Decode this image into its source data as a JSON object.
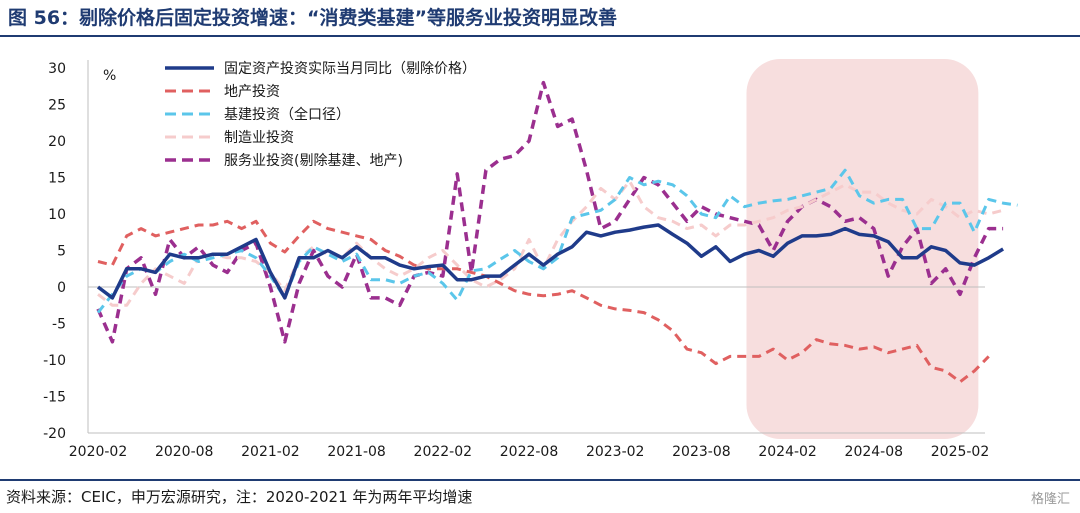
{
  "title": "图 56：剔除价格后固定投资增速：“消费类基建”等服务业投资明显改善",
  "source": "资料来源：CEIC，申万宏源研究，注：2020-2021 年为两年平均增速",
  "watermark": "格隆汇",
  "chart_data": {
    "type": "line",
    "ylabel": "%",
    "ylim": [
      -20,
      30
    ],
    "yticks": [
      30,
      25,
      20,
      15,
      10,
      5,
      0,
      -5,
      -10,
      -15,
      -20
    ],
    "x_tick_labels": [
      "2020-02",
      "2020-08",
      "2021-02",
      "2021-08",
      "2022-02",
      "2022-08",
      "2023-02",
      "2023-08",
      "2024-02",
      "2024-08",
      "2025-02"
    ],
    "x_start": "2020-02",
    "x_end": "2025-02",
    "legend_position": "top-center",
    "highlight_range": [
      "2023-11",
      "2025-03"
    ],
    "highlight_color": "#f7dede",
    "series": [
      {
        "name": "固定资产投资实际当月同比（剔除价格）",
        "color": "#1f3b8a",
        "dash": "solid",
        "width": 3.5,
        "values": [
          0,
          -1.5,
          2.5,
          2.5,
          2,
          4.5,
          4,
          4,
          4.5,
          4.5,
          5.5,
          6.5,
          2,
          -1.5,
          4,
          4,
          5,
          4,
          5.5,
          4,
          4,
          3,
          2.5,
          2.8,
          3,
          1,
          1,
          1.5,
          1.5,
          3,
          4.5,
          3,
          4.5,
          5.5,
          7.5,
          7,
          7.5,
          7.8,
          8.2,
          8.5,
          7.2,
          6,
          4.2,
          5.5,
          3.5,
          4.5,
          5,
          4.2,
          6,
          7,
          7,
          7.2,
          8,
          7.2,
          7,
          6.2,
          4,
          4,
          5.5,
          5,
          3.3,
          3,
          4,
          5.2
        ]
      },
      {
        "name": "地产投资",
        "color": "#e06060",
        "dash": "dashed",
        "width": 3,
        "values": [
          3.5,
          3,
          7,
          8,
          7,
          7.5,
          8,
          8.5,
          8.5,
          9,
          8,
          9,
          6,
          4.8,
          7,
          9,
          8,
          7.5,
          7,
          6.5,
          5,
          4.2,
          3,
          2.5,
          2.5,
          2.5,
          2,
          1.5,
          0.5,
          -0.5,
          -1,
          -1.2,
          -1,
          -0.5,
          -1.5,
          -2.5,
          -3,
          -3.2,
          -3.5,
          -4.5,
          -6,
          -8.5,
          -9,
          -10.5,
          -9.5,
          -9.5,
          -9.5,
          -8.5,
          -10,
          -9,
          -7.2,
          -7.8,
          -8,
          -8.5,
          -8.2,
          -9,
          -8.5,
          -8,
          -11,
          -11.5,
          -13,
          -11.5,
          -9.5
        ]
      },
      {
        "name": "基建投资（全口径）",
        "color": "#5bc6ea",
        "dash": "dashed",
        "width": 3,
        "values": [
          -3.5,
          -1,
          1.5,
          2.5,
          2,
          3.5,
          4.5,
          3.5,
          4,
          4.5,
          5,
          4,
          1.5,
          -1.5,
          3.5,
          5.5,
          4.5,
          3.5,
          4.5,
          1,
          1,
          0.5,
          1.5,
          2,
          0.5,
          -1.8,
          2.2,
          2.5,
          3.8,
          5,
          3.5,
          2.5,
          4,
          9.5,
          10,
          10.5,
          12,
          15,
          14,
          14.5,
          14,
          12.5,
          10,
          9.5,
          12.5,
          11,
          11.5,
          11.8,
          12,
          12.5,
          13,
          13.5,
          16,
          12.5,
          11.5,
          12,
          12,
          8,
          8,
          11.5,
          11.5,
          7.5,
          12,
          11.5,
          11.2
        ]
      },
      {
        "name": "制造业投资",
        "color": "#f6cccc",
        "dash": "dashed",
        "width": 3,
        "values": [
          -1,
          -2.5,
          -2.5,
          0.5,
          2.5,
          1.5,
          0.5,
          4,
          4.5,
          4,
          4,
          3.5,
          2,
          -0.5,
          4,
          5.5,
          4.5,
          4,
          6,
          4,
          2.5,
          1.5,
          2.5,
          4,
          5,
          3,
          1,
          0,
          1,
          2.5,
          6.5,
          2.5,
          6.5,
          9,
          11,
          13.5,
          12,
          14.5,
          11,
          9.5,
          9,
          8,
          8.5,
          7,
          8.5,
          8.5,
          9,
          9.5,
          10.5,
          11,
          12,
          13,
          14,
          13,
          13,
          11.5,
          10.5,
          10,
          12,
          11,
          9.5,
          10.5,
          10,
          10.5
        ]
      },
      {
        "name": "服务业投资(剔除基建、地产)",
        "color": "#9b2f8f",
        "dash": "dashed",
        "width": 3.5,
        "values": [
          -3,
          -7.5,
          2.5,
          4,
          -1,
          6.5,
          4,
          5.5,
          3,
          2,
          5,
          6,
          0,
          -7.5,
          0.5,
          5,
          1.5,
          0,
          4.5,
          -1.5,
          -1.5,
          -2.5,
          1.5,
          2,
          1.5,
          15.5,
          2,
          16,
          17.5,
          18,
          20,
          28,
          22,
          23,
          16,
          8,
          9,
          12,
          15,
          14,
          11.5,
          9,
          11,
          10,
          9.5,
          9,
          8.5,
          5,
          9,
          11,
          12,
          11,
          9,
          9.5,
          8,
          1.5,
          5.5,
          8,
          0.5,
          2.5,
          -1,
          4,
          8,
          8
        ]
      }
    ]
  }
}
